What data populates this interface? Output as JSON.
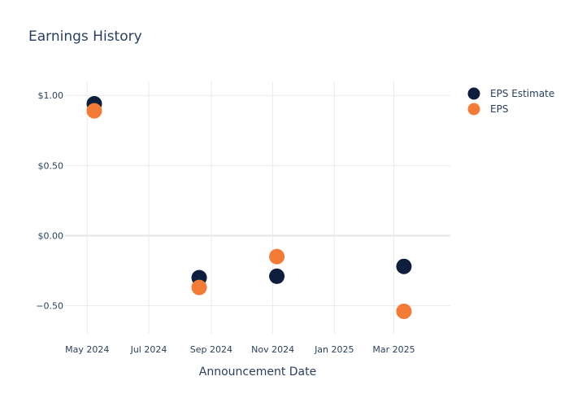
{
  "chart_data": {
    "type": "scatter",
    "title": "Earnings History",
    "xlabel": "Announcement Date",
    "ylabel": "",
    "x_ticks": [
      {
        "date": "2024-05-01",
        "label": "May 2024"
      },
      {
        "date": "2024-07-01",
        "label": "Jul 2024"
      },
      {
        "date": "2024-09-01",
        "label": "Sep 2024"
      },
      {
        "date": "2024-11-01",
        "label": "Nov 2024"
      },
      {
        "date": "2025-01-01",
        "label": "Jan 2025"
      },
      {
        "date": "2025-03-01",
        "label": "Mar 2025"
      }
    ],
    "xlim": [
      "2024-04-09",
      "2025-04-26"
    ],
    "y_ticks": [
      {
        "value": 1.0,
        "label": "$1.00"
      },
      {
        "value": 0.5,
        "label": "$0.50"
      },
      {
        "value": 0.0,
        "label": "$0.00"
      },
      {
        "value": -0.5,
        "label": "−0.50"
      }
    ],
    "ylim": [
      -0.7,
      1.1
    ],
    "grid": true,
    "legend_position": "top-right",
    "series": [
      {
        "name": "EPS Estimate",
        "color": "#0d1f3c",
        "points": [
          {
            "x": "2024-05-08",
            "y": 0.94
          },
          {
            "x": "2024-08-20",
            "y": -0.3
          },
          {
            "x": "2024-11-05",
            "y": -0.29
          },
          {
            "x": "2025-03-11",
            "y": -0.22
          }
        ]
      },
      {
        "name": "EPS",
        "color": "#f47b35",
        "points": [
          {
            "x": "2024-05-08",
            "y": 0.89
          },
          {
            "x": "2024-08-20",
            "y": -0.37
          },
          {
            "x": "2024-11-05",
            "y": -0.15
          },
          {
            "x": "2025-03-11",
            "y": -0.54
          }
        ]
      }
    ]
  }
}
